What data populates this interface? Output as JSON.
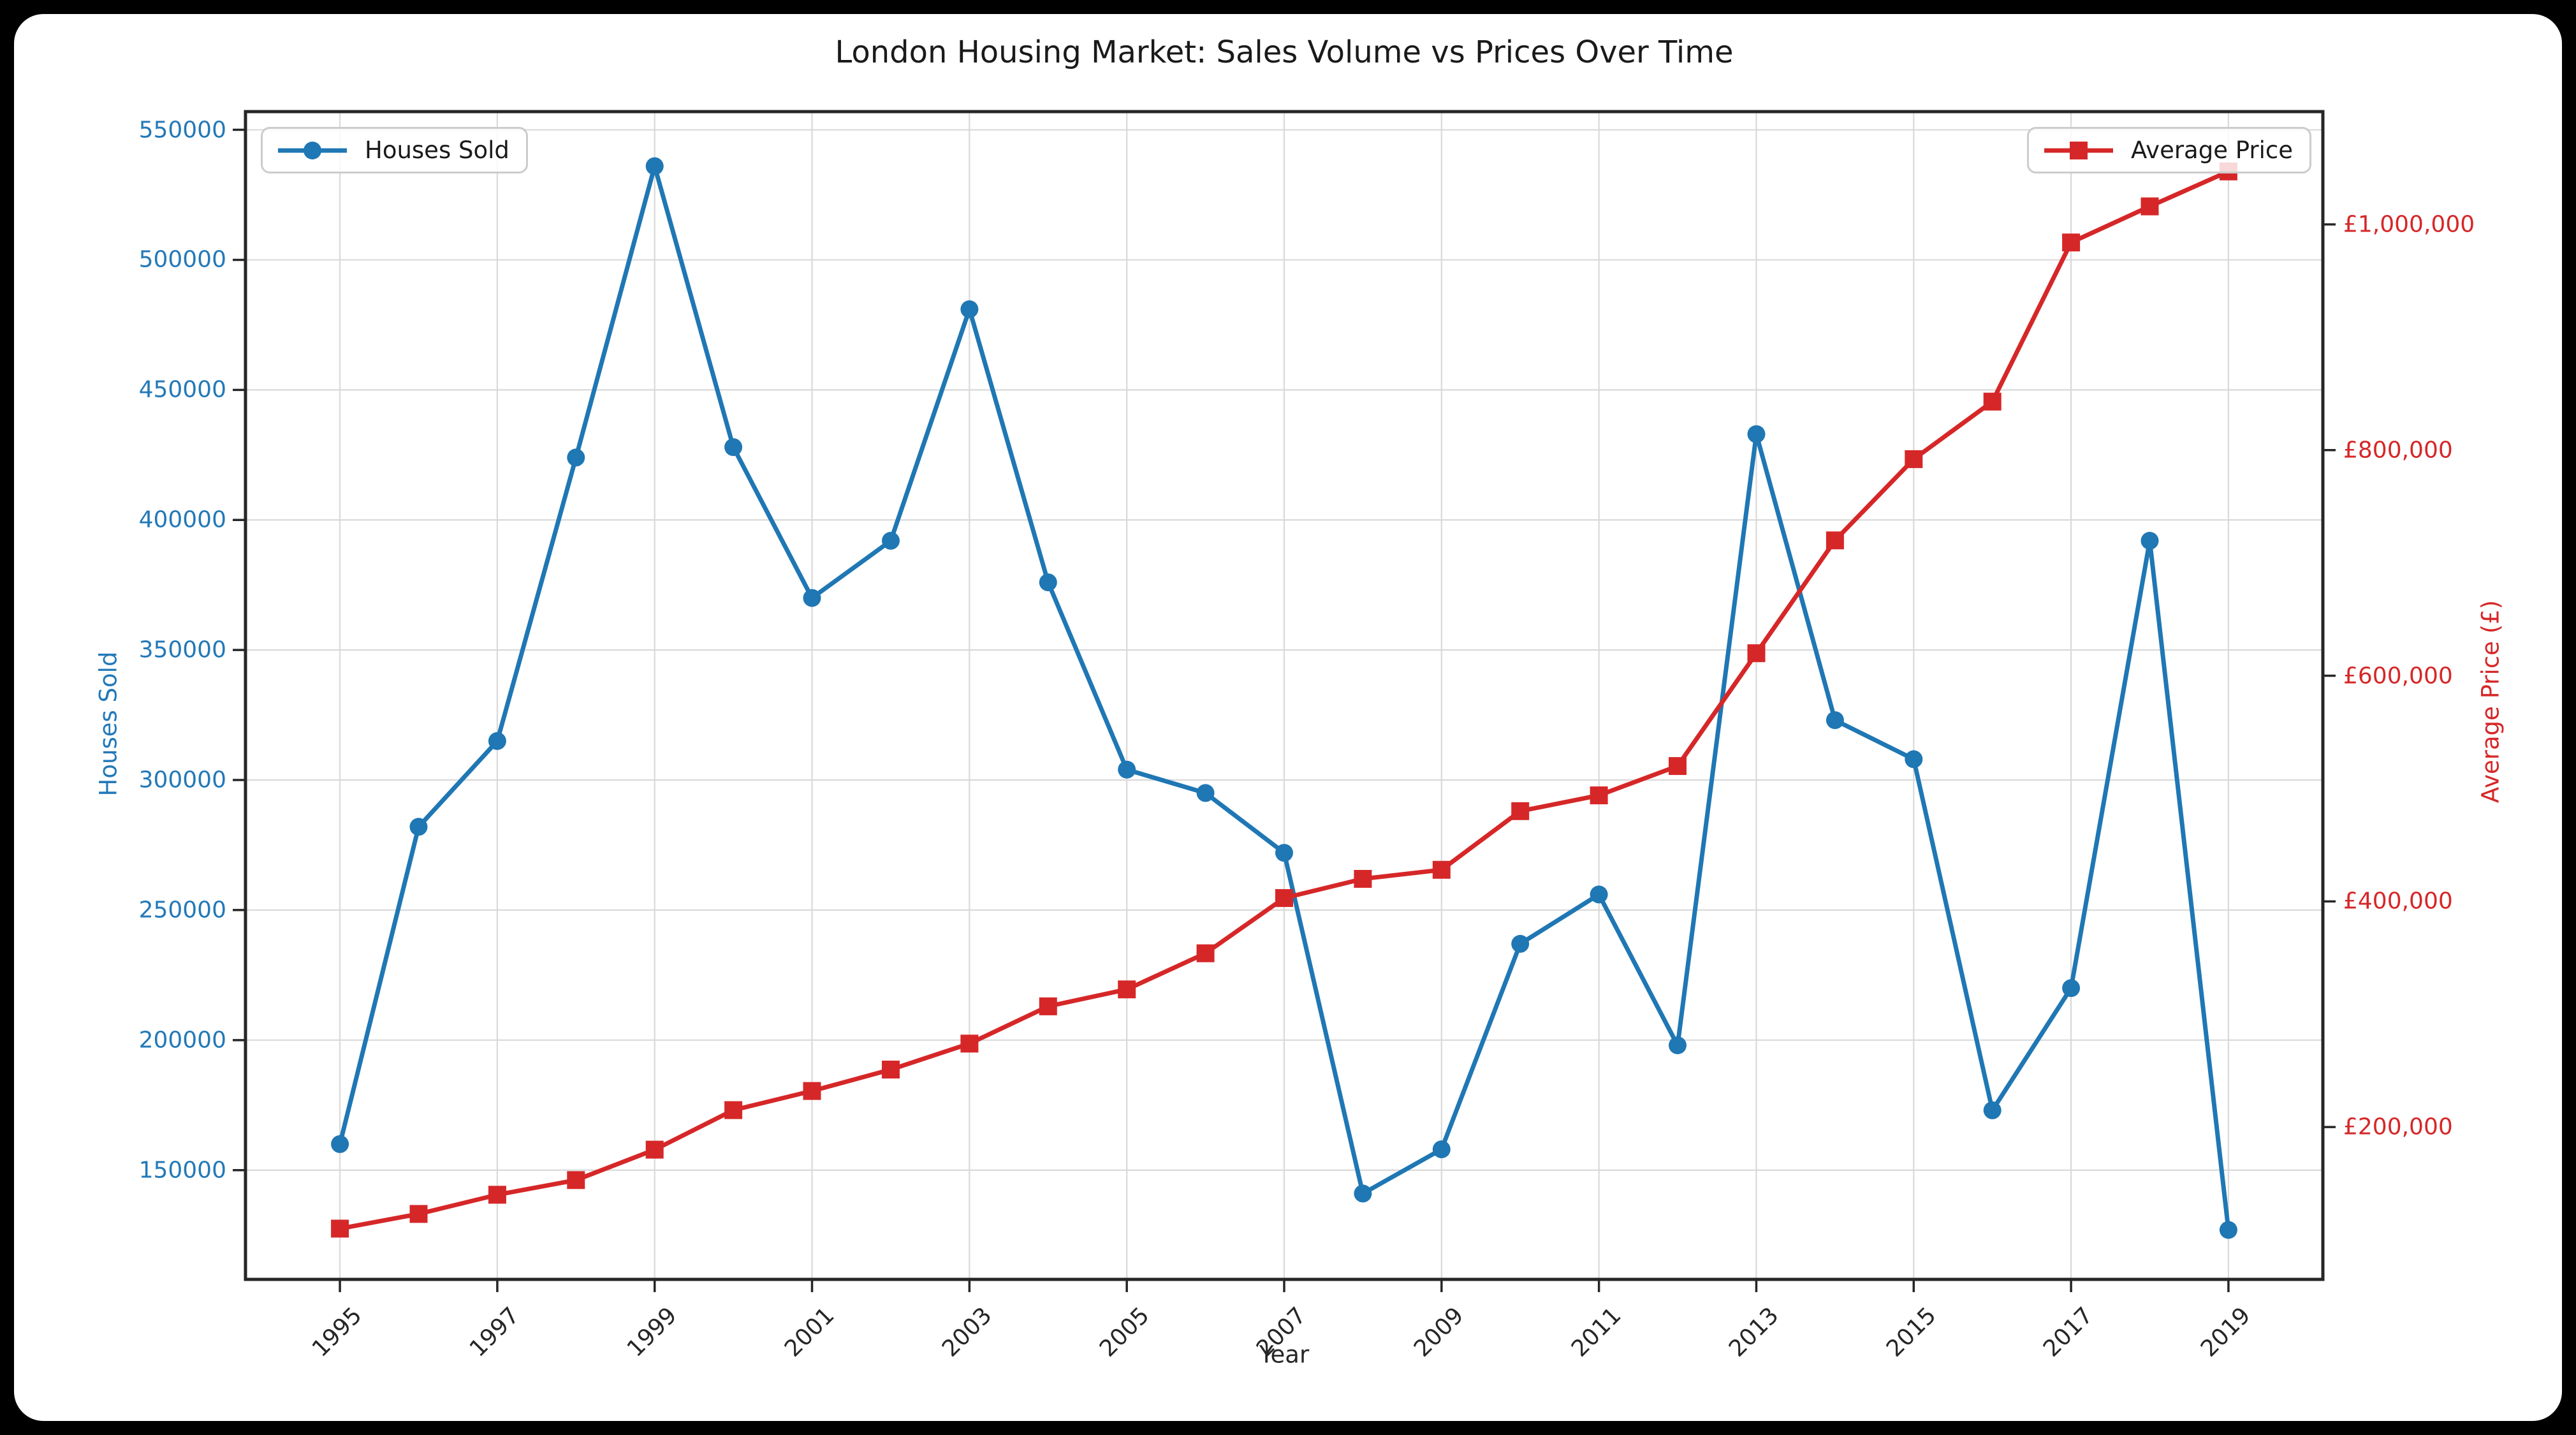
{
  "window": {
    "background": "#000000",
    "figure_background": "#ffffff"
  },
  "colors": {
    "houses_sold": "#1f77b4",
    "average_price": "#d62728",
    "grid": "#d9d9d9",
    "spine": "#262626",
    "left_tick_text": "#2379b8",
    "right_tick_text": "#d62728",
    "x_tick_text": "#262626",
    "title_text": "#1a1a1a"
  },
  "chart_data": {
    "type": "line",
    "title": "London Housing Market: Sales Volume vs Prices Over Time",
    "x_label": "Year",
    "y_left_label": "Houses Sold",
    "y_right_label": "Average Price (£)",
    "grid": true,
    "legend_positions": [
      "upper left",
      "upper right"
    ],
    "x": [
      1995,
      1996,
      1997,
      1998,
      1999,
      2000,
      2001,
      2002,
      2003,
      2004,
      2005,
      2006,
      2007,
      2008,
      2009,
      2010,
      2011,
      2012,
      2013,
      2014,
      2015,
      2016,
      2017,
      2018,
      2019
    ],
    "series": [
      {
        "name": "Houses Sold",
        "axis": "left",
        "color": "#1f77b4",
        "marker": "circle",
        "values": [
          160000,
          282000,
          315000,
          424000,
          536000,
          428000,
          370000,
          392000,
          481000,
          376000,
          304000,
          295000,
          272000,
          141000,
          158000,
          237000,
          256000,
          198000,
          433000,
          323000,
          308000,
          173000,
          220000,
          392000,
          127000
        ]
      },
      {
        "name": "Average Price",
        "axis": "right",
        "color": "#d62728",
        "marker": "square",
        "values": [
          110000,
          123000,
          140000,
          153000,
          180000,
          215000,
          232000,
          251000,
          274000,
          307000,
          322000,
          354000,
          403000,
          420000,
          428000,
          480000,
          494000,
          520000,
          620000,
          720000,
          792000,
          843000,
          984000,
          1016000,
          1047000
        ]
      }
    ],
    "x_range": [
      1993.8,
      2020.2
    ],
    "y_left_range": [
      108000,
      557000
    ],
    "y_right_range": [
      65000,
      1100000
    ],
    "x_ticks": [
      1995,
      1997,
      1999,
      2001,
      2003,
      2005,
      2007,
      2009,
      2011,
      2013,
      2015,
      2017,
      2019
    ],
    "x_tick_labels": [
      "1995",
      "1997",
      "1999",
      "2001",
      "2003",
      "2005",
      "2007",
      "2009",
      "2011",
      "2013",
      "2015",
      "2017",
      "2019"
    ],
    "y_left_ticks": [
      150000,
      200000,
      250000,
      300000,
      350000,
      400000,
      450000,
      500000,
      550000
    ],
    "y_left_tick_labels": [
      "150000",
      "200000",
      "250000",
      "300000",
      "350000",
      "400000",
      "450000",
      "500000",
      "550000"
    ],
    "y_right_ticks": [
      200000,
      400000,
      600000,
      800000,
      1000000
    ],
    "y_right_tick_labels": [
      "£200,000",
      "£400,000",
      "£600,000",
      "£800,000",
      "£1,000,000"
    ]
  }
}
